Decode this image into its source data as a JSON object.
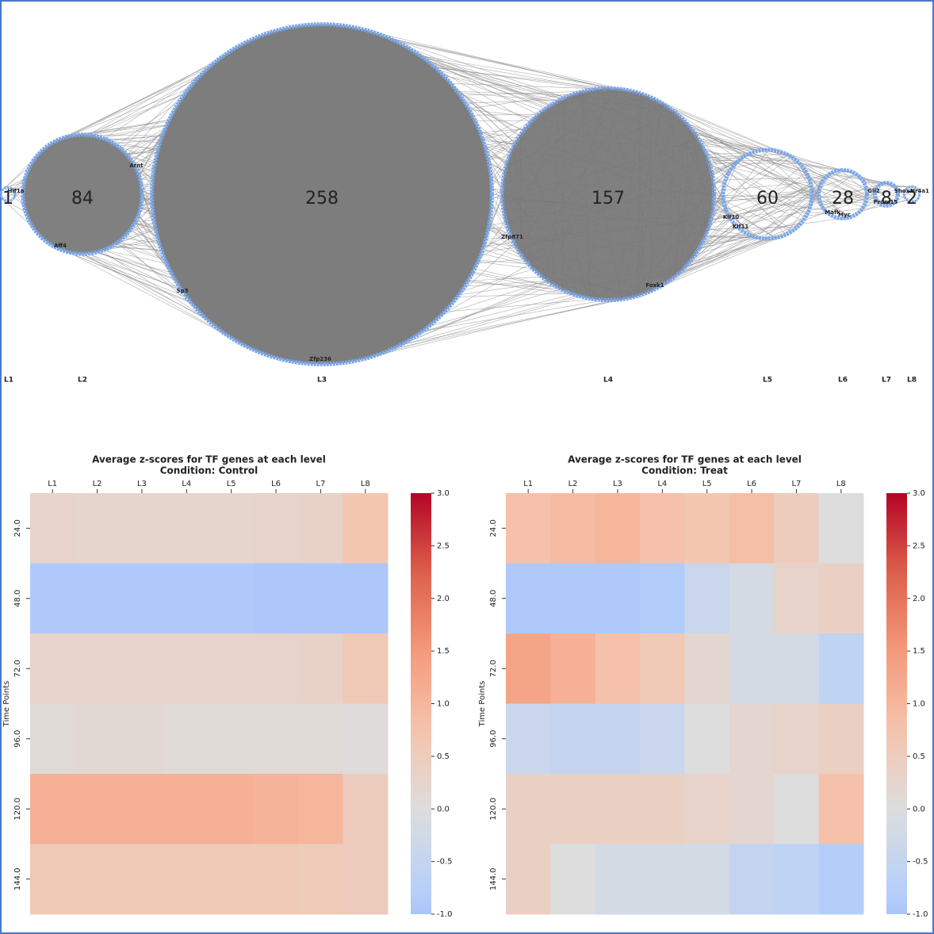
{
  "chart_data": [
    {
      "type": "network",
      "categories": [
        "L1",
        "L2",
        "L3",
        "L4",
        "L5",
        "L6",
        "L7",
        "L8"
      ],
      "values": [
        1,
        84,
        258,
        157,
        60,
        28,
        8,
        2
      ],
      "color": "#7aa7ec",
      "annotations": [
        "Hif1a",
        "Arnt",
        "Aff4",
        "Sp3",
        "Zfp236",
        "Zfp871",
        "Foxk1",
        "Klf10",
        "Klf11",
        "Mafk",
        "Myc",
        "Gli2",
        "Prdm15",
        "Shox2",
        "Nr4a1"
      ]
    },
    {
      "type": "heatmap",
      "title": "Average z-scores for TF genes at each level",
      "subtitle": "Condition: Control",
      "x": [
        "L1",
        "L2",
        "L3",
        "L4",
        "L5",
        "L6",
        "L7",
        "L8"
      ],
      "y": [
        "24.0",
        "48.0",
        "72.0",
        "96.0",
        "120.0",
        "144.0"
      ],
      "ylabel": "Time Points",
      "values": [
        [
          0.3,
          0.25,
          0.25,
          0.25,
          0.25,
          0.3,
          0.35,
          0.7
        ],
        [
          -0.9,
          -0.9,
          -0.9,
          -0.9,
          -0.9,
          -0.95,
          -0.95,
          -0.95
        ],
        [
          0.3,
          0.3,
          0.3,
          0.3,
          0.3,
          0.3,
          0.35,
          0.6
        ],
        [
          0.1,
          0.15,
          0.15,
          0.1,
          0.1,
          0.1,
          0.1,
          0.05
        ],
        [
          1.1,
          1.1,
          1.1,
          1.1,
          1.1,
          1.05,
          1.0,
          0.5
        ],
        [
          0.6,
          0.6,
          0.6,
          0.6,
          0.6,
          0.6,
          0.55,
          0.5
        ]
      ],
      "colormap": "coolwarm",
      "center": 0,
      "clim": [
        -1,
        3
      ],
      "cticks": [
        {
          "value": -1,
          "label": "-1.0"
        },
        -0.5,
        {
          "value": 0,
          "label": "0.0"
        },
        0.5,
        {
          "value": 1,
          "label": "1.0"
        },
        1.5,
        {
          "value": 2,
          "label": "2.0"
        },
        2.5,
        {
          "value": 3,
          "label": "3.0"
        }
      ]
    },
    {
      "type": "heatmap",
      "title": "Average z-scores for TF genes at each level",
      "subtitle": "Condition: Treat",
      "x": [
        "L1",
        "L2",
        "L3",
        "L4",
        "L5",
        "L6",
        "L7",
        "L8"
      ],
      "y": [
        "24.0",
        "48.0",
        "72.0",
        "96.0",
        "120.0",
        "144.0"
      ],
      "ylabel": "Time Points",
      "values": [
        [
          0.8,
          0.9,
          1.0,
          0.8,
          0.7,
          0.85,
          0.5,
          0.0
        ],
        [
          -0.9,
          -0.9,
          -0.9,
          -0.85,
          -0.4,
          -0.2,
          0.3,
          0.4
        ],
        [
          1.3,
          1.1,
          0.8,
          0.6,
          0.2,
          -0.2,
          -0.2,
          -0.6
        ],
        [
          -0.4,
          -0.5,
          -0.5,
          -0.4,
          0.0,
          0.2,
          0.3,
          0.4
        ],
        [
          0.4,
          0.4,
          0.4,
          0.4,
          0.3,
          0.2,
          0.0,
          0.8
        ],
        [
          0.4,
          0.0,
          -0.2,
          -0.2,
          -0.2,
          -0.5,
          -0.6,
          -0.8
        ]
      ],
      "colormap": "coolwarm",
      "center": 0,
      "clim": [
        -1,
        3
      ],
      "cticks": [
        {
          "value": -1,
          "label": "-1.0"
        },
        -0.5,
        {
          "value": 0,
          "label": "0.0"
        },
        0.5,
        {
          "value": 1,
          "label": "1.0"
        },
        1.5,
        {
          "value": 2,
          "label": "2.0"
        },
        2.5,
        {
          "value": 3,
          "label": "3.0"
        }
      ]
    }
  ]
}
